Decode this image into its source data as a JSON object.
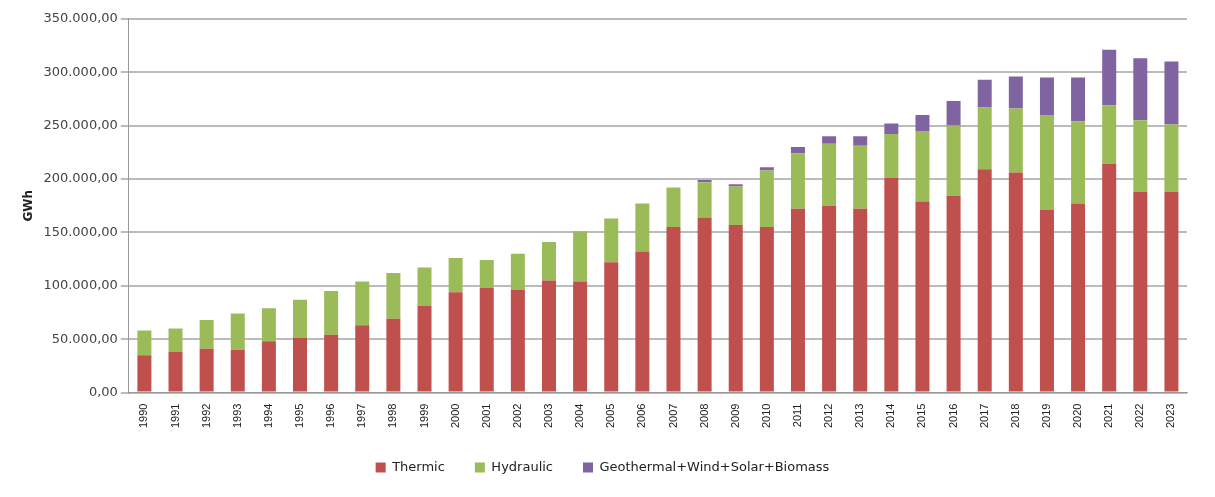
{
  "chart_data": {
    "type": "bar",
    "stacked": true,
    "ylabel": "GWh",
    "categories": [
      "1990",
      "1991",
      "1992",
      "1993",
      "1994",
      "1995",
      "1996",
      "1997",
      "1998",
      "1999",
      "2000",
      "2001",
      "2002",
      "2003",
      "2004",
      "2005",
      "2006",
      "2007",
      "2008",
      "2009",
      "2010",
      "2011",
      "2012",
      "2013",
      "2014",
      "2015",
      "2016",
      "2017",
      "2018",
      "2019",
      "2020",
      "2021",
      "2022",
      "2023"
    ],
    "series": [
      {
        "name": "Thermic",
        "color": "#c0504d",
        "values": [
          35000,
          38000,
          41000,
          40000,
          48000,
          51000,
          54000,
          63000,
          69000,
          81000,
          94000,
          98000,
          96000,
          105000,
          104000,
          122000,
          132000,
          155000,
          164000,
          157000,
          155000,
          172000,
          175000,
          172000,
          201000,
          179000,
          184000,
          209000,
          206000,
          171000,
          177000,
          214000,
          188000,
          188000
        ]
      },
      {
        "name": "Hydraulic",
        "color": "#9bbb59",
        "values": [
          23000,
          22000,
          27000,
          34000,
          31000,
          36000,
          41000,
          41000,
          43000,
          36000,
          32000,
          26000,
          34000,
          36000,
          47000,
          41000,
          45000,
          37000,
          33000,
          36000,
          53000,
          52000,
          58000,
          59000,
          41000,
          66000,
          66000,
          58000,
          60000,
          89000,
          77000,
          55000,
          67000,
          63000
        ]
      },
      {
        "name": "Geothermal+Wind+Solar+Biomass",
        "color": "#8064a2",
        "values": [
          0,
          0,
          0,
          0,
          0,
          0,
          0,
          0,
          0,
          0,
          0,
          0,
          0,
          0,
          0,
          0,
          0,
          0,
          2000,
          2000,
          3000,
          6000,
          7000,
          9000,
          10000,
          15000,
          23000,
          26000,
          30000,
          35000,
          41000,
          52000,
          58000,
          59000
        ]
      }
    ],
    "ylim": [
      0,
      350000
    ],
    "yticks": [
      {
        "value": 0,
        "label": "0,00"
      },
      {
        "value": 50000,
        "label": "50.000,00"
      },
      {
        "value": 100000,
        "label": "100.000,00"
      },
      {
        "value": 150000,
        "label": "150.000,00"
      },
      {
        "value": 200000,
        "label": "200.000,00"
      },
      {
        "value": 250000,
        "label": "250.000,00"
      },
      {
        "value": 300000,
        "label": "300.000,00"
      },
      {
        "value": 350000,
        "label": "350.000,00"
      }
    ],
    "grid": "y",
    "legend": "bottom"
  }
}
